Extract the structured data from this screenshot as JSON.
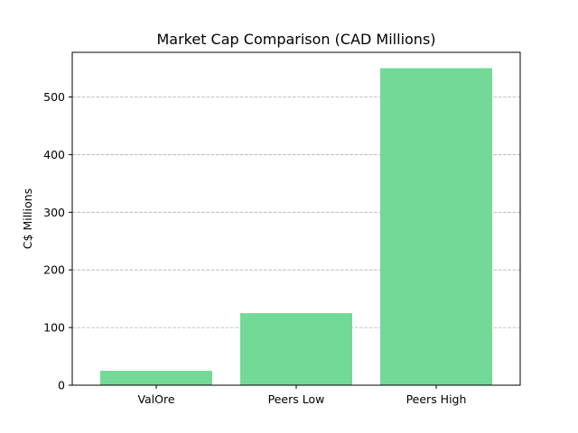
{
  "chart_data": {
    "type": "bar",
    "title": "Market Cap Comparison (CAD Millions)",
    "xlabel": "",
    "ylabel": "C$ Millions",
    "categories": [
      "ValOre",
      "Peers Low",
      "Peers High"
    ],
    "values": [
      25,
      125,
      550
    ],
    "ylim": [
      0,
      577.5
    ],
    "yticks": [
      0,
      100,
      200,
      300,
      400,
      500
    ],
    "grid": "y-dashed",
    "bar_color": "#72d997"
  }
}
